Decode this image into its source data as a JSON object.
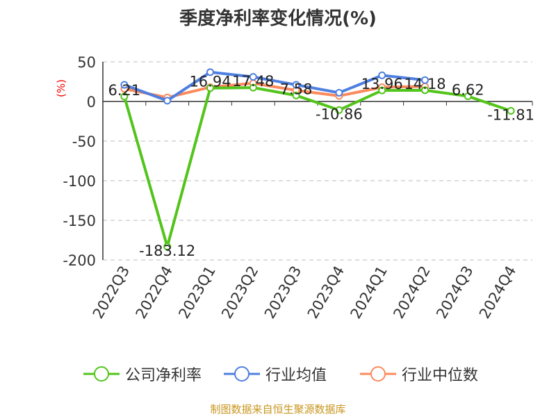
{
  "chart_data": {
    "type": "line",
    "title": "季度净利率变化情况(%)",
    "ylabel": "(%)",
    "ylim": [
      -200,
      50
    ],
    "yticks": [
      50,
      0,
      -50,
      -100,
      -150,
      -200
    ],
    "categories": [
      "2022Q3",
      "2022Q4",
      "2023Q1",
      "2023Q2",
      "2023Q3",
      "2023Q4",
      "2024Q1",
      "2024Q2",
      "2024Q3",
      "2024Q4"
    ],
    "series": [
      {
        "name": "公司净利率",
        "color": "#52c41a",
        "values": [
          6.21,
          -183.12,
          16.94,
          17.48,
          7.58,
          -10.86,
          13.96,
          14.18,
          6.62,
          -11.81
        ],
        "labels": [
          "6.21",
          "-183.12",
          "16.94",
          "17.48",
          "7.58",
          "-10.86",
          "13.96",
          "14.18",
          "6.62",
          "-11.81"
        ]
      },
      {
        "name": "行业均值",
        "color": "#4e7fe0",
        "values": [
          21,
          1,
          37,
          31,
          21,
          11,
          33,
          27,
          null,
          null
        ]
      },
      {
        "name": "行业中位数",
        "color": "#fb8a5c",
        "values": [
          16,
          5,
          18,
          23,
          14,
          7,
          18,
          19,
          null,
          null
        ]
      }
    ],
    "grid": true,
    "legend": "bottom"
  },
  "source": "制图数据来自恒生聚源数据库"
}
